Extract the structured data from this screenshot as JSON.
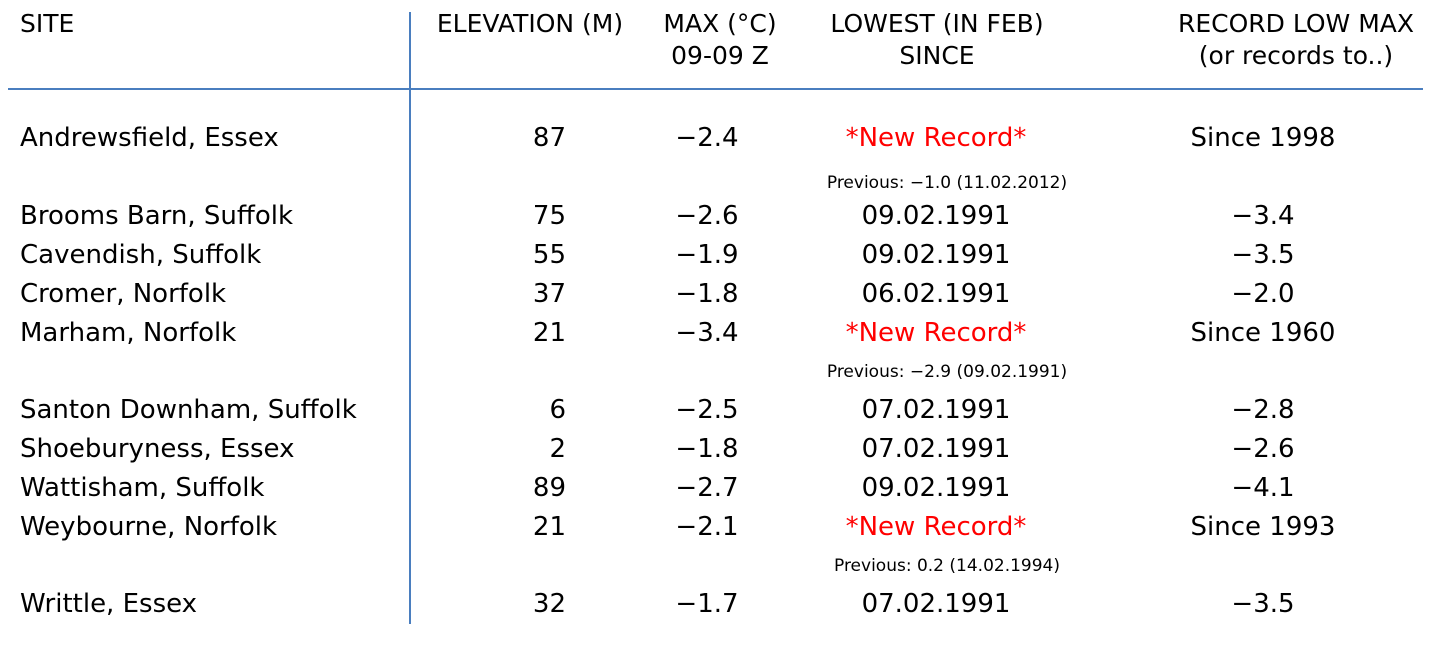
{
  "headers": {
    "site": "SITE",
    "elevation": "ELEVATION (M)",
    "max_line1": "MAX (°C)",
    "max_line2": "09-09 Z",
    "lowest_line1": "LOWEST (IN FEB)",
    "lowest_line2": "SINCE",
    "record_line1": "RECORD LOW MAX",
    "record_line2": "(or records to..)"
  },
  "colors": {
    "rule": "#4a7ebf",
    "new_record": "#ff0000",
    "text": "#000000"
  },
  "rows": [
    {
      "site": "Andrewsfield, Essex",
      "elevation": "87",
      "max": "−2.4",
      "lowest": "*New Record*",
      "record": "Since 1998",
      "previous": "Previous: −1.0 (11.02.2012)"
    },
    {
      "site": "Brooms Barn, Suffolk",
      "elevation": "75",
      "max": "−2.6",
      "lowest": "09.02.1991",
      "record": "−3.4"
    },
    {
      "site": "Cavendish, Suffolk",
      "elevation": "55",
      "max": "−1.9",
      "lowest": "09.02.1991",
      "record": "−3.5"
    },
    {
      "site": "Cromer, Norfolk",
      "elevation": "37",
      "max": "−1.8",
      "lowest": "06.02.1991",
      "record": "−2.0"
    },
    {
      "site": "Marham, Norfolk",
      "elevation": "21",
      "max": "−3.4",
      "lowest": "*New Record*",
      "record": "Since 1960",
      "previous": "Previous: −2.9 (09.02.1991)"
    },
    {
      "site": "Santon Downham, Suffolk",
      "elevation": "6",
      "max": "−2.5",
      "lowest": "07.02.1991",
      "record": "−2.8"
    },
    {
      "site": "Shoeburyness, Essex",
      "elevation": "2",
      "max": "−1.8",
      "lowest": "07.02.1991",
      "record": "−2.6"
    },
    {
      "site": "Wattisham, Suffolk",
      "elevation": "89",
      "max": "−2.7",
      "lowest": "09.02.1991",
      "record": "−4.1"
    },
    {
      "site": "Weybourne, Norfolk",
      "elevation": "21",
      "max": "−2.1",
      "lowest": "*New Record*",
      "record": "Since 1993",
      "previous": "Previous: 0.2 (14.02.1994)"
    },
    {
      "site": "Writtle, Essex",
      "elevation": "32",
      "max": "−1.7",
      "lowest": "07.02.1991",
      "record": "−3.5"
    }
  ]
}
